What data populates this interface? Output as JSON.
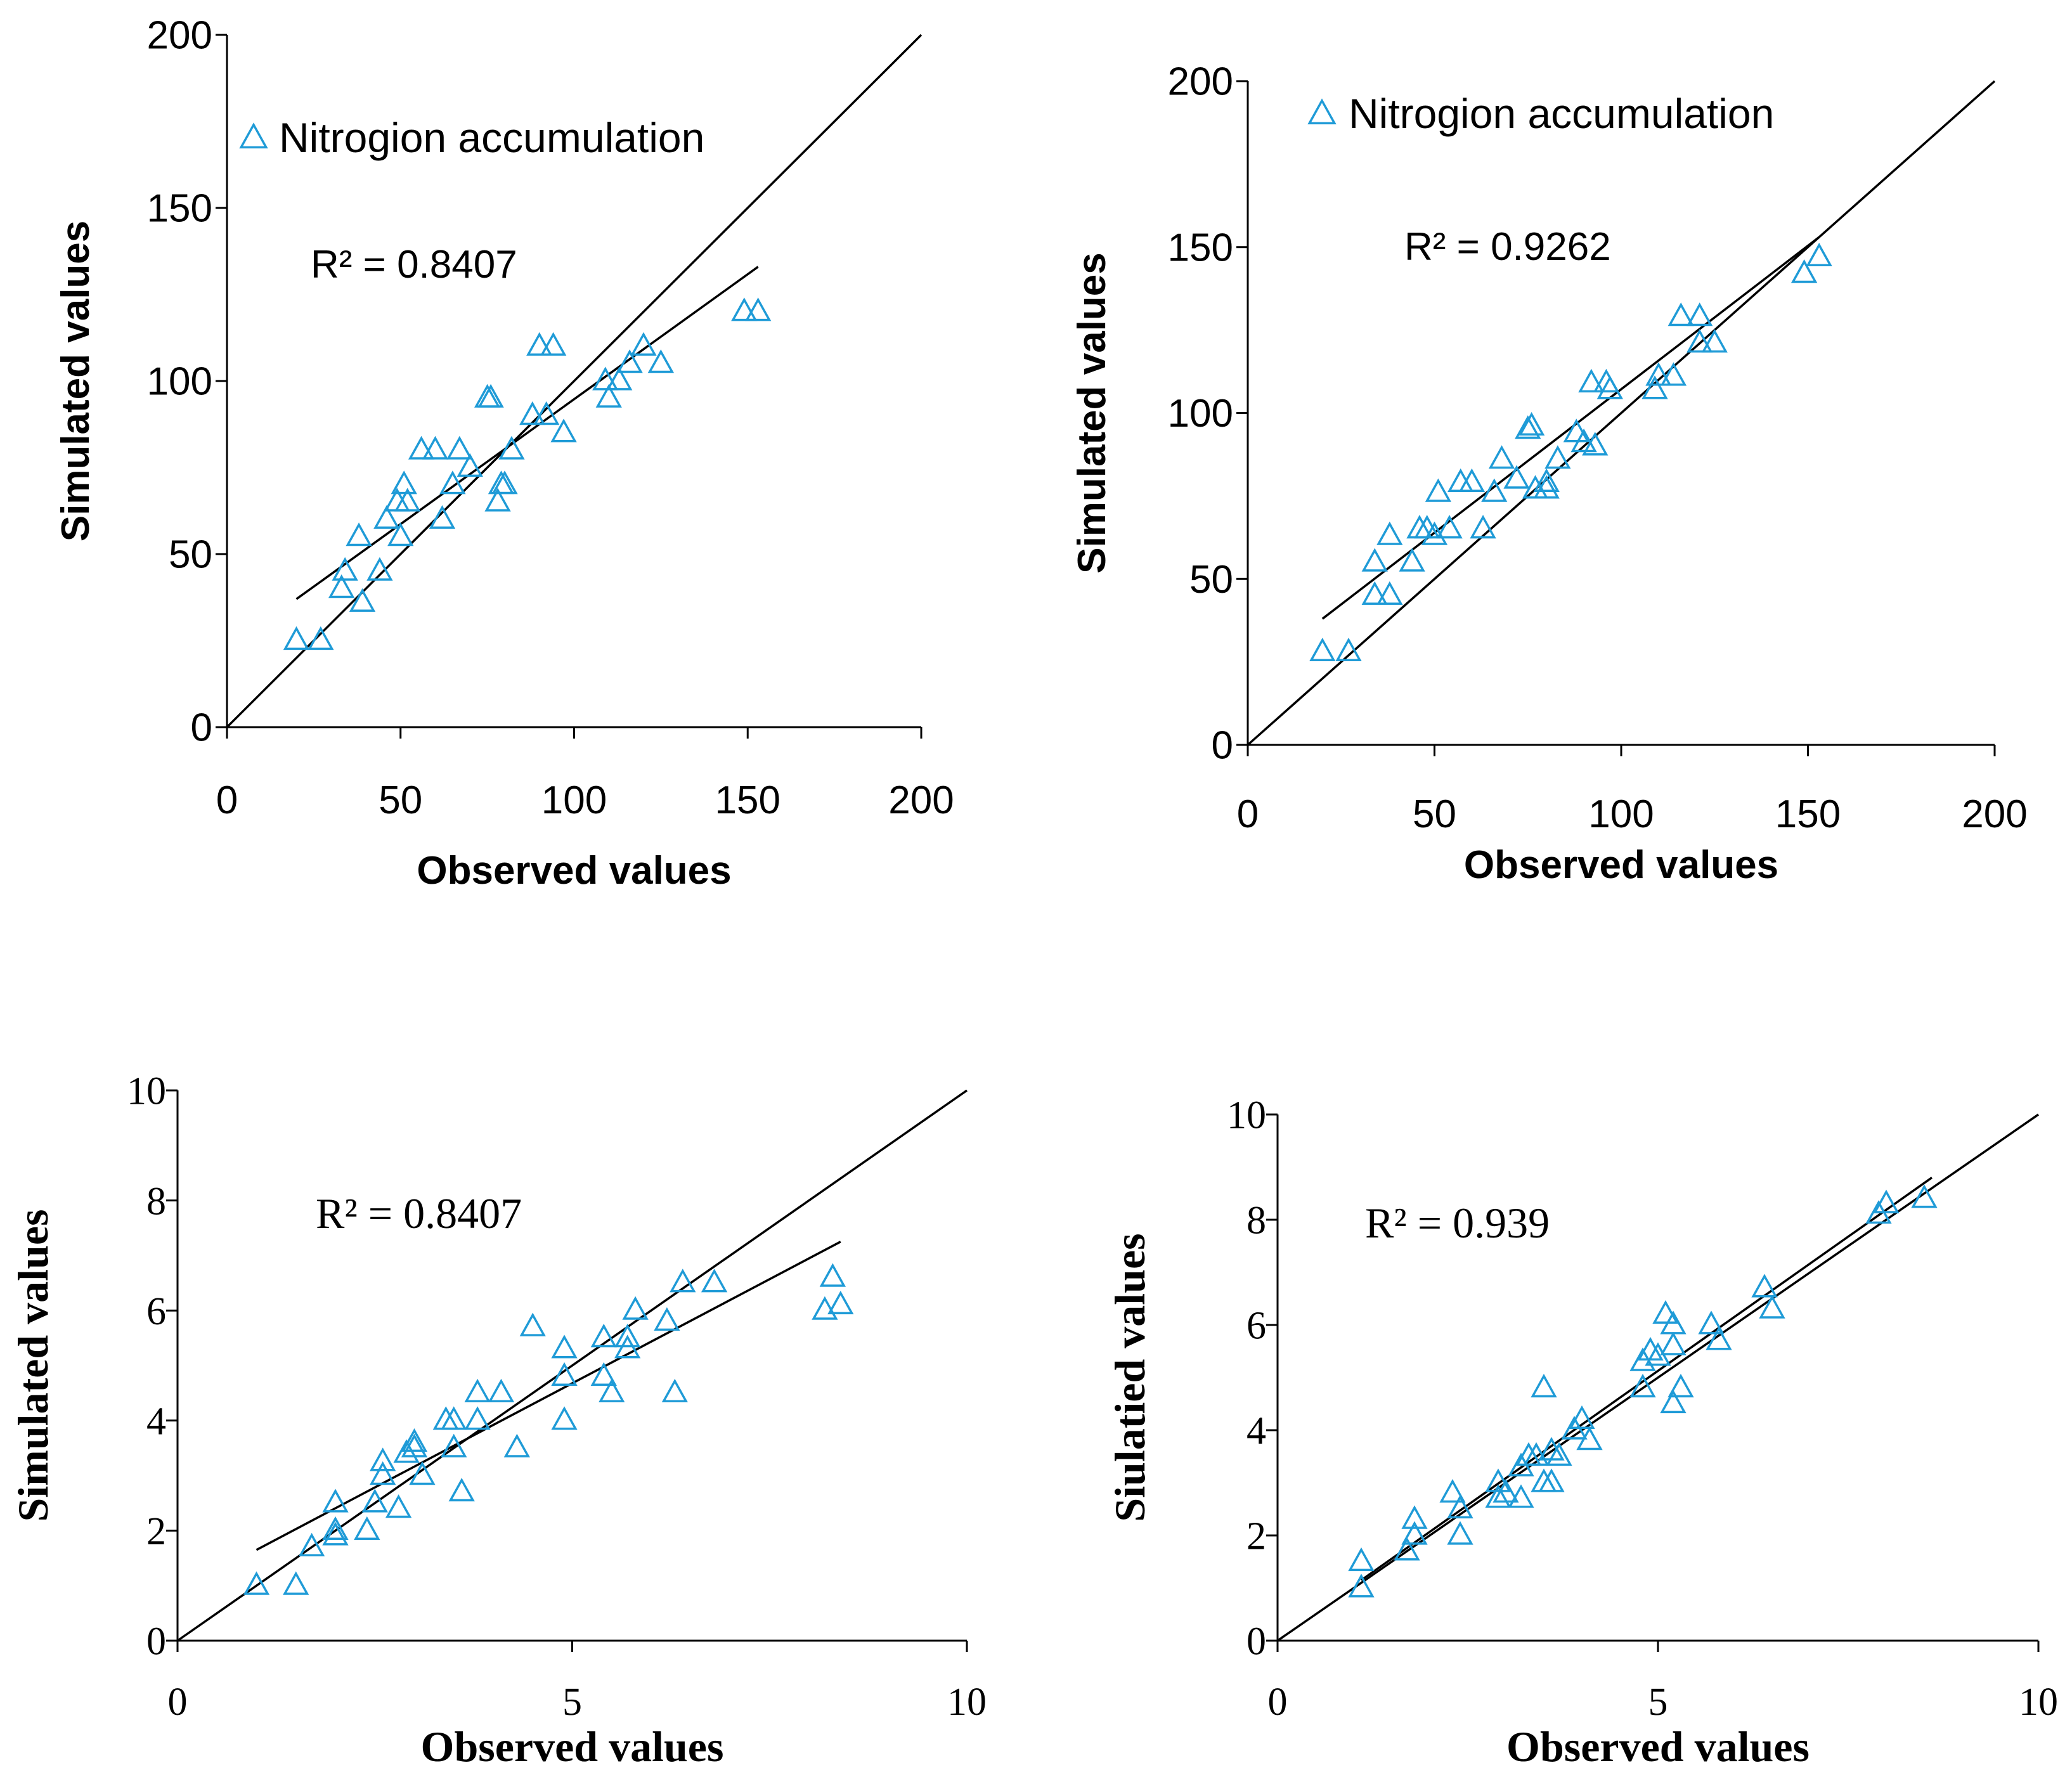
{
  "colors": {
    "marker": "#1f9bd7",
    "line": "#000000",
    "background": "#ffffff"
  },
  "chart_data": [
    {
      "type": "scatter",
      "font": "sans",
      "xlabel": "Observed values",
      "ylabel": "Simulated values",
      "xlim": [
        0,
        200
      ],
      "ylim": [
        0,
        200
      ],
      "xticks": [
        "0",
        "50",
        "100",
        "150",
        "200"
      ],
      "yticks": [
        "0",
        "50",
        "100",
        "150",
        "200"
      ],
      "xtick_values": [
        0,
        50,
        100,
        150,
        200
      ],
      "ytick_values": [
        0,
        50,
        100,
        150,
        200
      ],
      "legend": "Nitrogion accumulation",
      "legend_marker": "triangle",
      "legend_position": "top-left",
      "annotation": "R² = 0.8407",
      "lines": [
        {
          "kind": "1:1",
          "x": [
            0,
            200
          ],
          "y": [
            0,
            200
          ]
        },
        {
          "kind": "regression",
          "x": [
            20,
            153
          ],
          "y": [
            37,
            133
          ]
        }
      ],
      "points": [
        [
          20,
          25
        ],
        [
          27,
          25
        ],
        [
          33,
          40
        ],
        [
          34,
          45
        ],
        [
          38,
          55
        ],
        [
          39,
          36
        ],
        [
          44,
          45
        ],
        [
          46,
          60
        ],
        [
          49,
          65
        ],
        [
          50,
          55
        ],
        [
          51,
          70
        ],
        [
          52,
          65
        ],
        [
          56,
          80
        ],
        [
          60,
          80
        ],
        [
          62,
          60
        ],
        [
          65,
          70
        ],
        [
          67,
          80
        ],
        [
          70,
          75
        ],
        [
          75,
          95
        ],
        [
          76,
          95
        ],
        [
          78,
          65
        ],
        [
          79,
          70
        ],
        [
          80,
          70
        ],
        [
          82,
          80
        ],
        [
          88,
          90
        ],
        [
          90,
          110
        ],
        [
          92,
          90
        ],
        [
          94,
          110
        ],
        [
          97,
          85
        ],
        [
          109,
          100
        ],
        [
          110,
          95
        ],
        [
          113,
          100
        ],
        [
          116,
          105
        ],
        [
          120,
          110
        ],
        [
          125,
          105
        ],
        [
          149,
          120
        ],
        [
          153,
          120
        ]
      ]
    },
    {
      "type": "scatter",
      "font": "sans",
      "xlabel": "Observed values",
      "ylabel": "Simulated values",
      "xlim": [
        0,
        200
      ],
      "ylim": [
        0,
        200
      ],
      "xticks": [
        "0",
        "50",
        "100",
        "150",
        "200"
      ],
      "yticks": [
        "0",
        "50",
        "100",
        "150",
        "200"
      ],
      "xtick_values": [
        0,
        50,
        100,
        150,
        200
      ],
      "ytick_values": [
        0,
        50,
        100,
        150,
        200
      ],
      "legend": "Nitrogion accumulation",
      "legend_marker": "triangle",
      "legend_position": "top-left",
      "annotation": "R² = 0.9262",
      "lines": [
        {
          "kind": "1:1",
          "x": [
            0,
            200
          ],
          "y": [
            0,
            200
          ]
        },
        {
          "kind": "regression",
          "x": [
            20,
            153
          ],
          "y": [
            38,
            153
          ]
        }
      ],
      "points": [
        [
          20,
          28
        ],
        [
          27,
          28
        ],
        [
          34,
          45
        ],
        [
          34,
          55
        ],
        [
          38,
          45
        ],
        [
          38,
          63
        ],
        [
          44,
          55
        ],
        [
          46,
          65
        ],
        [
          48,
          65
        ],
        [
          50,
          63
        ],
        [
          51,
          76
        ],
        [
          54,
          65
        ],
        [
          57,
          79
        ],
        [
          60,
          79
        ],
        [
          63,
          65
        ],
        [
          66,
          76
        ],
        [
          68,
          86
        ],
        [
          72,
          80
        ],
        [
          75,
          95
        ],
        [
          76,
          96
        ],
        [
          77,
          77
        ],
        [
          80,
          77
        ],
        [
          80,
          79
        ],
        [
          83,
          86
        ],
        [
          88,
          94
        ],
        [
          90,
          91
        ],
        [
          92,
          109
        ],
        [
          93,
          90
        ],
        [
          96,
          109
        ],
        [
          97,
          107
        ],
        [
          109,
          107
        ],
        [
          110,
          111
        ],
        [
          114,
          111
        ],
        [
          116,
          129
        ],
        [
          121,
          129
        ],
        [
          121,
          121
        ],
        [
          125,
          121
        ],
        [
          149,
          142
        ],
        [
          153,
          147
        ]
      ]
    },
    {
      "type": "scatter",
      "font": "serif",
      "xlabel": "Observed values",
      "ylabel": "Simulated values",
      "xlim": [
        0,
        10
      ],
      "ylim": [
        0,
        10
      ],
      "xticks": [
        "0",
        "5",
        "10"
      ],
      "yticks": [
        "0",
        "2",
        "4",
        "6",
        "8",
        "10"
      ],
      "xtick_values": [
        0,
        5,
        10
      ],
      "ytick_values": [
        0,
        2,
        4,
        6,
        8,
        10
      ],
      "annotation": "R² = 0.8407",
      "lines": [
        {
          "kind": "1:1",
          "x": [
            0,
            10
          ],
          "y": [
            0,
            10
          ]
        },
        {
          "kind": "regression",
          "x": [
            1.0,
            8.4
          ],
          "y": [
            1.65,
            7.25
          ]
        }
      ],
      "points": [
        [
          1.0,
          1.0
        ],
        [
          1.5,
          1.0
        ],
        [
          1.7,
          1.7
        ],
        [
          2.0,
          1.9
        ],
        [
          2.0,
          2.0
        ],
        [
          2.0,
          2.5
        ],
        [
          2.4,
          2.0
        ],
        [
          2.5,
          2.5
        ],
        [
          2.6,
          3.0
        ],
        [
          2.6,
          3.25
        ],
        [
          2.8,
          2.4
        ],
        [
          2.9,
          3.4
        ],
        [
          3.0,
          3.6
        ],
        [
          3.0,
          3.5
        ],
        [
          3.1,
          3.0
        ],
        [
          3.4,
          4.0
        ],
        [
          3.5,
          3.5
        ],
        [
          3.5,
          4.0
        ],
        [
          3.6,
          2.7
        ],
        [
          3.8,
          4.0
        ],
        [
          3.8,
          4.5
        ],
        [
          4.1,
          4.5
        ],
        [
          4.3,
          3.5
        ],
        [
          4.5,
          5.7
        ],
        [
          4.9,
          4.8
        ],
        [
          4.9,
          5.3
        ],
        [
          4.9,
          4.0
        ],
        [
          5.4,
          5.5
        ],
        [
          5.4,
          4.8
        ],
        [
          5.5,
          4.5
        ],
        [
          5.7,
          5.3
        ],
        [
          5.7,
          5.5
        ],
        [
          5.8,
          6.0
        ],
        [
          6.2,
          5.8
        ],
        [
          6.3,
          4.5
        ],
        [
          6.4,
          6.5
        ],
        [
          6.8,
          6.5
        ],
        [
          8.2,
          6.0
        ],
        [
          8.3,
          6.6
        ],
        [
          8.4,
          6.1
        ]
      ]
    },
    {
      "type": "scatter",
      "font": "serif",
      "xlabel": "Observed values",
      "ylabel": "Siulatied values",
      "xlim": [
        0,
        10
      ],
      "ylim": [
        0,
        10
      ],
      "xticks": [
        "0",
        "5",
        "10"
      ],
      "yticks": [
        "0",
        "2",
        "4",
        "6",
        "8",
        "10"
      ],
      "xtick_values": [
        0,
        5,
        10
      ],
      "ytick_values": [
        0,
        2,
        4,
        6,
        8,
        10
      ],
      "annotation": "R² = 0.939",
      "lines": [
        {
          "kind": "1:1",
          "x": [
            0,
            10
          ],
          "y": [
            0,
            10
          ]
        },
        {
          "kind": "regression",
          "x": [
            1.1,
            8.6
          ],
          "y": [
            1.15,
            8.8
          ]
        }
      ],
      "points": [
        [
          1.1,
          1.0
        ],
        [
          1.1,
          1.5
        ],
        [
          1.7,
          1.7
        ],
        [
          1.8,
          2.0
        ],
        [
          1.8,
          2.3
        ],
        [
          2.3,
          2.8
        ],
        [
          2.4,
          2.0
        ],
        [
          2.4,
          2.5
        ],
        [
          2.9,
          2.7
        ],
        [
          2.9,
          3.0
        ],
        [
          3.0,
          2.8
        ],
        [
          3.2,
          2.7
        ],
        [
          3.2,
          3.3
        ],
        [
          3.3,
          3.5
        ],
        [
          3.4,
          3.5
        ],
        [
          3.5,
          3.0
        ],
        [
          3.5,
          4.8
        ],
        [
          3.6,
          3.0
        ],
        [
          3.6,
          3.6
        ],
        [
          3.7,
          3.5
        ],
        [
          3.9,
          4.0
        ],
        [
          4.0,
          4.2
        ],
        [
          4.1,
          3.8
        ],
        [
          4.8,
          4.8
        ],
        [
          4.8,
          5.3
        ],
        [
          4.9,
          5.5
        ],
        [
          5.0,
          5.4
        ],
        [
          5.1,
          6.2
        ],
        [
          5.2,
          6.0
        ],
        [
          5.2,
          5.6
        ],
        [
          5.2,
          4.5
        ],
        [
          5.3,
          4.8
        ],
        [
          5.7,
          6.0
        ],
        [
          5.8,
          5.7
        ],
        [
          6.4,
          6.7
        ],
        [
          6.5,
          6.3
        ],
        [
          7.9,
          8.1
        ],
        [
          8.0,
          8.3
        ],
        [
          8.5,
          8.4
        ]
      ]
    }
  ]
}
